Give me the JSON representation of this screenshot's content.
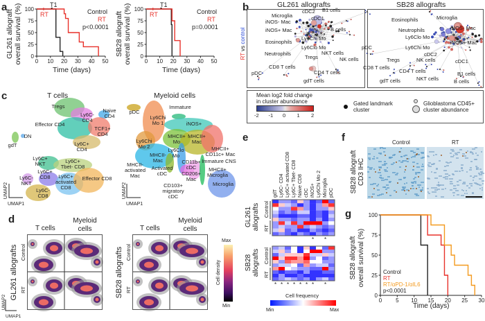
{
  "panels": {
    "a": "a",
    "b": "b",
    "c": "c",
    "d": "d",
    "e": "e",
    "f": "f",
    "g": "g"
  },
  "a": {
    "t1": "T1",
    "rt_mark": "RT",
    "plots": [
      {
        "ylabel1": "GL261 allograft",
        "ylabel2": "overall survival (%)",
        "legend_control": "Control",
        "legend_rt": "RT",
        "pval": "p<0.0001"
      },
      {
        "ylabel1": "SB28 allograft",
        "ylabel2": "overall survival (%)",
        "legend_control": "Control",
        "legend_rt": "RT",
        "pval": "p=0.0001"
      }
    ],
    "xlabel": "Time (days)"
  },
  "b": {
    "side_label_rt": "RT",
    "side_label_vs": " vs ",
    "side_label_control": "control",
    "gl_title": "GL261 allografts",
    "sb_title": "SB28 allografts",
    "gl_labels": [
      "Microglia",
      "iNOS- Mac",
      "iNOS+ Mac",
      "Eosinophils",
      "Neutrophils",
      "cDC2",
      "cDC1",
      "B1 cells",
      "B cells",
      "Ly6Chi Mo",
      "Ly6Clo Mo",
      "Tregs",
      "NKT cells",
      "NK cells",
      "CD8 T cells",
      "CD4 T cells",
      "gdT cells",
      "pDC"
    ],
    "sb_labels": [
      "Microglia",
      "Eosinophils",
      "Neutrophils",
      "Ly6Clo Mo",
      "Ly6Chi Mo",
      "iNOS- Mac",
      "iNOS+ Mac",
      "pDC",
      "cDC2",
      "cDC1",
      "Tregs",
      "NK cells",
      "CD8 T cells",
      "CD4 T cells",
      "NKT cells",
      "gdT cells",
      "B1 cells",
      "B cells"
    ],
    "legend": {
      "title1": "Mean log2 fold change",
      "title2": "in cluster abundance",
      "ticks": [
        "-2",
        "-1",
        "0",
        "1",
        "2"
      ],
      "landmark1": "Gated landmark",
      "landmark2": "cluster",
      "abund1": "Glioblastoma CD45+",
      "abund2": "cluster abundance"
    }
  },
  "c": {
    "t_title": "T cells",
    "m_title": "Myeloid cells",
    "t_labels": [
      "Tregs",
      "Naive CD4",
      "Ly6C- CD4",
      "Effector CD4",
      "TCF1+ CD4",
      "DN",
      "gdT",
      "Ly6C+ CD4",
      "Ly6C+ NKT",
      "Ly6C+ Tbet- CD8",
      "Ly6C+ CD8",
      "Ly6C- NKT",
      "Ly6C+ activated CD8",
      "Effector CD8",
      "Ly6C- CD8"
    ],
    "m_labels": [
      "pDC",
      "Immature",
      "Ly6Chi Mo 1",
      "iNOS+",
      "MHCII+ Mo",
      "MHCII+ Mac",
      "Ly6Chi Mo 2",
      "Ly6Clo Mo",
      "MHCII+ CD11c+ Mac",
      "MHCII- Mac",
      "CD11b+ cDC",
      "Immature CNS",
      "MHCII- activated Mac",
      "Activated cDC",
      "CD206+ Mac",
      "MHCII+ Microglia",
      "CD103+ migratory cDC",
      "Microglia"
    ],
    "umap1": "UMAP1",
    "umap2": "UMAP2"
  },
  "d": {
    "col1": "T cells",
    "col2a": "Myeloid",
    "col2b": "cells",
    "gl_label": "GL261 allografts",
    "sb_label": "SB28 allografts",
    "row_control": "Control",
    "row_rt": "RT",
    "cb_max": "Max",
    "cb_min": "Min",
    "cb_label": "Cell density",
    "umap1": "UMAP1",
    "umap2": "UMAP2"
  },
  "e": {
    "columns": [
      "gdT",
      "Ly6C- CD4",
      "Ly6C+ activated CD8",
      "Ly6C+ Tbet- CD8",
      "Naive CD8",
      "cDC",
      "iNOS+",
      "Ly6Chi Mo 2",
      "Microglia",
      "pDC"
    ],
    "gl_label1": "GL261",
    "gl_label2": "allografts",
    "sb_label1": "SB28",
    "sb_label2": "allografts",
    "row_control": "Control",
    "row_rt": "RT",
    "cb_label": "Cell frequency",
    "cb_min": "Min",
    "cb_max": "Max",
    "gl_stars": [
      6,
      8
    ],
    "sb_stars": [
      0,
      1,
      2,
      3,
      4,
      5,
      6,
      8
    ],
    "gl_matrix": [
      [
        0.1,
        0.3,
        0.3,
        0.2,
        0.6,
        0.3,
        0.1,
        0.2,
        1.0,
        0.2
      ],
      [
        0.9,
        0.6,
        0.4,
        0.3,
        0.1,
        0.3,
        0.1,
        0.3,
        0.7,
        0.9
      ],
      [
        0.5,
        0.3,
        0.3,
        0.9,
        0.7,
        0.3,
        0.1,
        0.3,
        0.3,
        0.6
      ],
      [
        0.4,
        0.2,
        0.3,
        0.2,
        0.4,
        0.4,
        0.1,
        0.2,
        0.1,
        0.3
      ],
      [
        0.3,
        0.1,
        0.1,
        0.1,
        0.2,
        0.2,
        0.1,
        0.2,
        0.1,
        0.4
      ],
      [
        0.6,
        0.3,
        0.3,
        0.2,
        0.3,
        0.3,
        0.1,
        0.3,
        0.1,
        0.3
      ],
      [
        0.3,
        0.9,
        0.4,
        0.9,
        0.3,
        1.0,
        1.0,
        1.0,
        0.3,
        0.5
      ],
      [
        0.3,
        0.4,
        0.3,
        0.3,
        0.9,
        0.3,
        0.4,
        0.3,
        0.2,
        0.3
      ],
      [
        0.4,
        0.6,
        0.2,
        0.3,
        0.1,
        0.1,
        0.3,
        0.2,
        0.1,
        0.2
      ],
      [
        0.2,
        0.3,
        0.2,
        0.1,
        0.3,
        0.2,
        0.1,
        0.3,
        0.2,
        0.3
      ]
    ],
    "sb_matrix": [
      [
        0.3,
        0.4,
        0.2,
        0.5,
        0.1,
        0.6,
        0.1,
        0.5,
        0.2,
        0.9
      ],
      [
        0.4,
        0.6,
        0.3,
        0.5,
        0.1,
        0.5,
        1.0,
        1.0,
        0.3,
        0.3
      ],
      [
        0.2,
        0.4,
        0.6,
        0.6,
        0.6,
        0.9,
        0.4,
        0.4,
        0.6,
        0.4
      ],
      [
        1.0,
        0.6,
        0.9,
        0.9,
        0.7,
        1.0,
        0.3,
        0.5,
        0.2,
        0.3
      ],
      [
        0.6,
        0.3,
        0.8,
        0.7,
        0.7,
        0.8,
        0.5,
        0.5,
        0.3,
        0.3
      ],
      [
        0.3,
        0.4,
        0.4,
        0.5,
        0.2,
        0.7,
        0.3,
        0.4,
        0.4,
        0.2
      ],
      [
        0.7,
        1.0,
        0.5,
        0.4,
        0.3,
        0.3,
        0.2,
        0.2,
        1.0,
        0.3
      ],
      [
        0.2,
        0.1,
        0.2,
        0.2,
        0.1,
        0.3,
        0.1,
        0.1,
        0.2,
        0.2
      ],
      [
        0.1,
        0.3,
        0.1,
        0.1,
        0.2,
        0.1,
        0.1,
        0.1,
        0.1,
        0.1
      ],
      [
        0.2,
        0.3,
        0.4,
        0.3,
        0.2,
        0.3,
        0.1,
        0.3,
        0.4,
        0.2
      ]
    ]
  },
  "f": {
    "col_control": "Control",
    "col_rt": "RT",
    "ylabel1": "SB28 allograft",
    "ylabel2": "CD3 IHC"
  },
  "g": {
    "ylabel1": "SB28 allograft",
    "ylabel2": "overall survival (%)",
    "xlabel": "Time (days)",
    "legend": [
      "Control",
      "RT",
      "RT/αPD-1/αIL6"
    ],
    "pval": "p<0.0001"
  },
  "colors": {
    "control": "#222222",
    "rt": "#e8312a",
    "combo": "#f39a1e",
    "hm_min": "#0019ff",
    "hm_max": "#ff0000",
    "lfc_neg": "#2d3f8e",
    "lfc_pos": "#cc1f1a"
  },
  "chart_data": [
    {
      "type": "line",
      "title": "GL261 allograft survival",
      "xlabel": "Time (days)",
      "ylabel": "overall survival (%)",
      "xlim": [
        0,
        50
      ],
      "ylim": [
        0,
        100
      ],
      "xticks": [
        0,
        10,
        20,
        30,
        40,
        50
      ],
      "yticks": [
        0,
        25,
        50,
        75,
        100
      ],
      "series": [
        {
          "name": "Control",
          "x": [
            0,
            14,
            14,
            17,
            17,
            19,
            19
          ],
          "y": [
            100,
            100,
            40,
            40,
            10,
            10,
            0
          ]
        },
        {
          "name": "RT",
          "x": [
            0,
            20,
            20,
            21,
            21,
            23,
            23,
            31,
            31,
            34,
            34,
            45,
            45
          ],
          "y": [
            100,
            100,
            90,
            90,
            80,
            80,
            50,
            50,
            30,
            30,
            20,
            20,
            0
          ]
        }
      ]
    },
    {
      "type": "line",
      "title": "SB28 allograft survival",
      "xlabel": "Time (days)",
      "ylabel": "overall survival (%)",
      "xlim": [
        0,
        50
      ],
      "ylim": [
        0,
        100
      ],
      "xticks": [
        0,
        10,
        20,
        30,
        40,
        50
      ],
      "yticks": [
        0,
        25,
        50,
        75,
        100
      ],
      "series": [
        {
          "name": "Control",
          "x": [
            0,
            18.5,
            18.5,
            19,
            19
          ],
          "y": [
            100,
            100,
            67,
            67,
            0
          ]
        },
        {
          "name": "RT",
          "x": [
            0,
            19,
            19,
            21,
            21,
            25,
            25
          ],
          "y": [
            100,
            100,
            75,
            75,
            33,
            33,
            0
          ]
        }
      ]
    },
    {
      "type": "line",
      "title": "SB28 allograft survival (g)",
      "xlabel": "Time (days)",
      "ylabel": "overall survival (%)",
      "xlim": [
        0,
        30
      ],
      "ylim": [
        0,
        100
      ],
      "xticks": [
        0,
        5,
        10,
        15,
        20,
        25,
        30
      ],
      "yticks": [
        0,
        25,
        50,
        75,
        100
      ],
      "series": [
        {
          "name": "Control",
          "x": [
            0,
            12,
            12,
            14,
            14
          ],
          "y": [
            100,
            100,
            62.5,
            62.5,
            0
          ]
        },
        {
          "name": "RT",
          "x": [
            0,
            14,
            14,
            18,
            18,
            19,
            19,
            20,
            20
          ],
          "y": [
            100,
            100,
            75,
            75,
            62.5,
            62.5,
            25,
            25,
            0
          ]
        },
        {
          "name": "RT/αPD-1/αIL6",
          "x": [
            0,
            15,
            15,
            19,
            19,
            21,
            21,
            22,
            22,
            26,
            26,
            27,
            27,
            28,
            28
          ],
          "y": [
            100,
            100,
            87.5,
            87.5,
            62.5,
            62.5,
            50,
            50,
            37.5,
            37.5,
            25,
            25,
            12.5,
            12.5,
            0
          ]
        }
      ]
    }
  ]
}
